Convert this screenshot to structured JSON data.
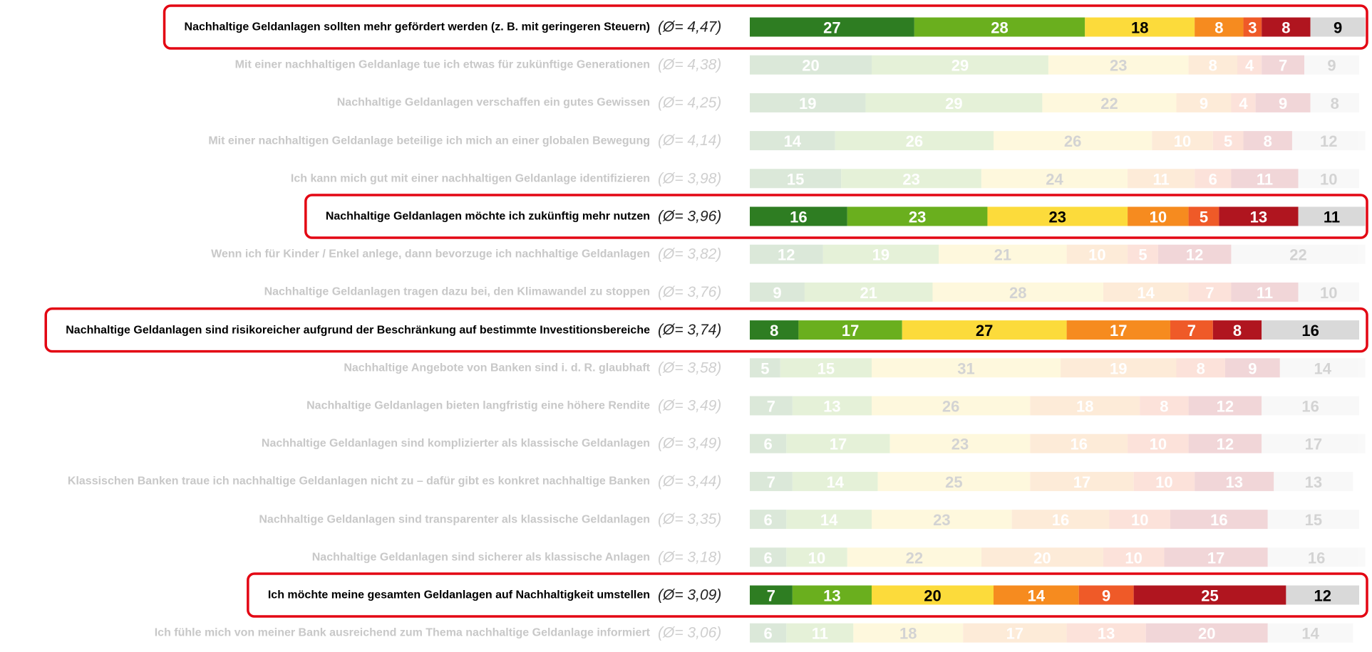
{
  "chart_data": {
    "type": "bar",
    "orientation": "horizontal",
    "stacked": true,
    "categories": [
      "Nachhaltige Geldanlagen sollten mehr gefördert werden (z. B. mit geringeren Steuern)",
      "Mit einer nachhaltigen Geldanlage tue ich etwas für zukünftige Generationen",
      "Nachhaltige Geldanlagen verschaffen ein gutes Gewissen",
      "Mit einer nachhaltigen Geldanlage beteilige ich mich an einer globalen Bewegung",
      "Ich kann mich gut mit einer nachhaltigen Geldanlage identifizieren",
      "Nachhaltige Geldanlagen möchte ich zukünftig mehr nutzen",
      "Wenn ich für Kinder / Enkel anlege, dann bevorzuge ich nachhaltige Geldanlagen",
      "Nachhaltige Geldanlagen tragen dazu bei, den Klimawandel zu stoppen",
      "Nachhaltige Geldanlagen sind risikoreicher aufgrund der Beschränkung auf bestimmte Investitionsbereiche",
      "Nachhaltige Angebote von Banken sind i. d. R. glaubhaft",
      "Nachhaltige Geldanlagen bieten langfristig eine höhere Rendite",
      "Nachhaltige Geldanlagen sind komplizierter als klassische Geldanlagen",
      "Klassischen Banken traue ich nachhaltige Geldanlagen nicht zu – dafür gibt es konkret nachhaltige Banken",
      "Nachhaltige Geldanlagen sind transparenter als klassische Geldanlagen",
      "Nachhaltige Geldanlagen sind sicherer als klassische Anlagen",
      "Ich möchte meine gesamten Geldanlagen auf Nachhaltigkeit umstellen",
      "Ich fühle mich von meiner Bank ausreichend zum Thema nachhaltige Geldanlage informiert"
    ],
    "averages": [
      "(Ø= 4,47)",
      "(Ø= 4,38)",
      "(Ø= 4,25)",
      "(Ø= 4,14)",
      "(Ø= 3,98)",
      "(Ø= 3,96)",
      "(Ø= 3,82)",
      "(Ø= 3,76)",
      "(Ø= 3,74)",
      "(Ø= 3,58)",
      "(Ø= 3,49)",
      "(Ø= 3,49)",
      "(Ø= 3,44)",
      "(Ø= 3,35)",
      "(Ø= 3,18)",
      "(Ø= 3,09)",
      "(Ø= 3,06)"
    ],
    "highlighted": [
      true,
      false,
      false,
      false,
      false,
      true,
      false,
      false,
      true,
      false,
      false,
      false,
      false,
      false,
      false,
      true,
      false
    ],
    "xlim": [
      0,
      100
    ],
    "series": [
      {
        "color": "#2e7d22",
        "label_color": "#ffffff",
        "values": [
          27,
          20,
          19,
          14,
          15,
          16,
          12,
          9,
          8,
          5,
          7,
          6,
          7,
          6,
          6,
          7,
          6
        ]
      },
      {
        "color": "#6aaf1e",
        "label_color": "#ffffff",
        "values": [
          28,
          29,
          29,
          26,
          23,
          23,
          19,
          21,
          17,
          15,
          13,
          17,
          14,
          14,
          10,
          13,
          11
        ]
      },
      {
        "color": "#fcdb3b",
        "label_color": "#000000",
        "values": [
          18,
          23,
          22,
          26,
          24,
          23,
          21,
          28,
          27,
          31,
          26,
          23,
          25,
          23,
          22,
          20,
          18
        ]
      },
      {
        "color": "#f68b1f",
        "label_color": "#ffffff",
        "values": [
          8,
          8,
          9,
          10,
          11,
          10,
          10,
          14,
          17,
          19,
          18,
          16,
          17,
          16,
          20,
          14,
          17
        ]
      },
      {
        "color": "#ef5a28",
        "label_color": "#ffffff",
        "values": [
          3,
          4,
          4,
          5,
          6,
          5,
          5,
          7,
          7,
          8,
          8,
          10,
          10,
          10,
          10,
          9,
          13
        ]
      },
      {
        "color": "#b0151f",
        "label_color": "#ffffff",
        "values": [
          8,
          7,
          9,
          8,
          11,
          13,
          12,
          11,
          8,
          9,
          12,
          12,
          13,
          16,
          17,
          25,
          20
        ]
      },
      {
        "color": "#d9d9d9",
        "label_color": "#000000",
        "values": [
          9,
          9,
          8,
          12,
          10,
          11,
          22,
          10,
          16,
          14,
          16,
          17,
          13,
          15,
          16,
          12,
          14
        ]
      }
    ]
  }
}
